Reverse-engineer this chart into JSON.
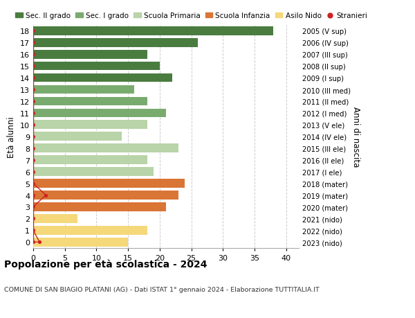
{
  "ages": [
    18,
    17,
    16,
    15,
    14,
    13,
    12,
    11,
    10,
    9,
    8,
    7,
    6,
    5,
    4,
    3,
    2,
    1,
    0
  ],
  "values": [
    38,
    26,
    18,
    20,
    22,
    16,
    18,
    21,
    18,
    14,
    23,
    18,
    19,
    24,
    23,
    21,
    7,
    18,
    15
  ],
  "right_labels": [
    "2005 (V sup)",
    "2006 (IV sup)",
    "2007 (III sup)",
    "2008 (II sup)",
    "2009 (I sup)",
    "2010 (III med)",
    "2011 (II med)",
    "2012 (I med)",
    "2013 (V ele)",
    "2014 (IV ele)",
    "2015 (III ele)",
    "2016 (II ele)",
    "2017 (I ele)",
    "2018 (mater)",
    "2019 (mater)",
    "2020 (mater)",
    "2021 (nido)",
    "2022 (nido)",
    "2023 (nido)"
  ],
  "bar_colors": [
    "#4a7c3f",
    "#4a7c3f",
    "#4a7c3f",
    "#4a7c3f",
    "#4a7c3f",
    "#7aab6e",
    "#7aab6e",
    "#7aab6e",
    "#b8d4a8",
    "#b8d4a8",
    "#b8d4a8",
    "#b8d4a8",
    "#b8d4a8",
    "#d97535",
    "#d97535",
    "#d97535",
    "#f5d87a",
    "#f5d87a",
    "#f5d87a"
  ],
  "stranieri_x": [
    0,
    0,
    0,
    0,
    0,
    0,
    0,
    0,
    0,
    0,
    0,
    0,
    0,
    0,
    2,
    0,
    0,
    0,
    1
  ],
  "legend_labels": [
    "Sec. II grado",
    "Sec. I grado",
    "Scuola Primaria",
    "Scuola Infanzia",
    "Asilo Nido",
    "Stranieri"
  ],
  "legend_colors": [
    "#4a7c3f",
    "#7aab6e",
    "#b8d4a8",
    "#d97535",
    "#f5d87a",
    "#cc2222"
  ],
  "ylabel": "Età alunni",
  "right_ylabel": "Anni di nascita",
  "title": "Popolazione per età scolastica - 2024",
  "subtitle": "COMUNE DI SAN BIAGIO PLATANI (AG) - Dati ISTAT 1° gennaio 2024 - Elaborazione TUTTITALIA.IT",
  "xlim": [
    0,
    42
  ],
  "xticks": [
    0,
    5,
    10,
    15,
    20,
    25,
    30,
    35,
    40
  ],
  "bg_color": "#ffffff",
  "grid_color": "#cccccc"
}
